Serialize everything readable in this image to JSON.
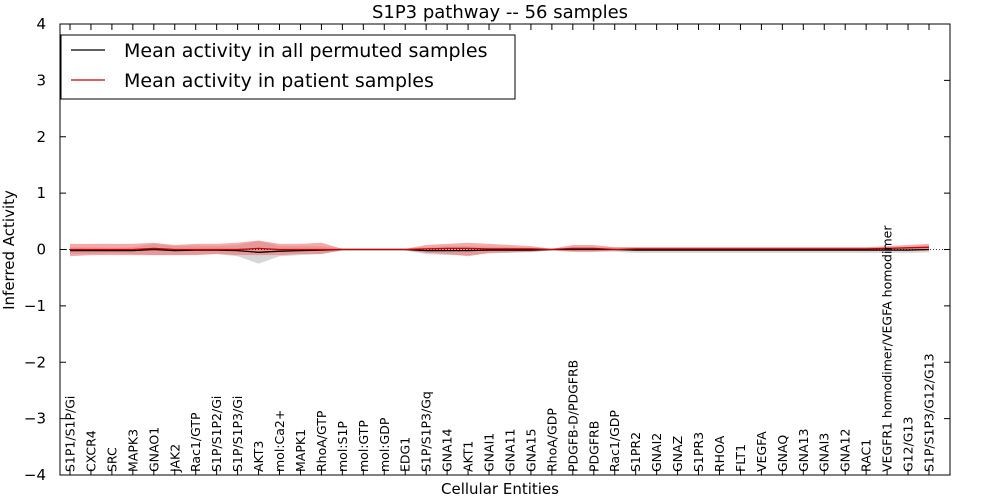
{
  "chart_data": {
    "type": "line",
    "title": "S1P3 pathway -- 56 samples",
    "xlabel": "Cellular Entities",
    "ylabel": "Inferred Activity",
    "ylim": [
      -4,
      4
    ],
    "yticks": [
      -4,
      -3,
      -2,
      -1,
      0,
      1,
      2,
      3,
      4
    ],
    "ytick_labels": [
      "−4",
      "−3",
      "−2",
      "−1",
      "0",
      "1",
      "2",
      "3",
      "4"
    ],
    "legend_position": "upper-left",
    "categories": [
      "S1P1/S1P/Gi",
      "CXCR4",
      "SRC",
      "MAPK3",
      "GNAO1",
      "JAK2",
      "Rac1/GTP",
      "S1P/S1P2/Gi",
      "S1P/S1P3/Gi",
      "AKT3",
      "mol:Ca2+",
      "MAPK1",
      "RhoA/GTP",
      "mol:S1P",
      "mol:GTP",
      "mol:GDP",
      "EDG1",
      "S1P/S1P3/Gq",
      "GNA14",
      "AKT1",
      "GNAI1",
      "GNA11",
      "GNA15",
      "RhoA/GDP",
      "PDGFB-D/PDGFRB",
      "PDGFRB",
      "Rac1/GDP",
      "S1PR2",
      "GNAI2",
      "GNAZ",
      "S1PR3",
      "RHOA",
      "FLT1",
      "VEGFA",
      "GNAQ",
      "GNA13",
      "GNAI3",
      "GNA12",
      "RAC1",
      "VEGFR1 homodimer/VEGFA homodimer",
      "G12/G13",
      "S1P/S1P3/G12/G13"
    ],
    "series": [
      {
        "name": "Mean activity in all permuted samples",
        "color": "#000000",
        "values": [
          -0.02,
          -0.02,
          -0.02,
          -0.02,
          0.0,
          -0.02,
          -0.01,
          -0.01,
          -0.02,
          -0.05,
          -0.03,
          -0.02,
          -0.01,
          0.0,
          0.0,
          0.0,
          0.0,
          -0.02,
          -0.02,
          -0.02,
          -0.01,
          -0.01,
          -0.01,
          0.0,
          0.0,
          0.0,
          0.0,
          -0.01,
          -0.01,
          -0.01,
          -0.01,
          -0.01,
          -0.01,
          -0.01,
          -0.01,
          -0.01,
          -0.01,
          -0.01,
          -0.01,
          -0.01,
          -0.01,
          0.0
        ],
        "band_lower": [
          -0.08,
          -0.08,
          -0.07,
          -0.08,
          -0.1,
          -0.1,
          -0.09,
          -0.08,
          -0.12,
          -0.25,
          -0.12,
          -0.1,
          -0.08,
          -0.02,
          -0.02,
          -0.02,
          -0.02,
          -0.08,
          -0.1,
          -0.1,
          -0.07,
          -0.06,
          -0.05,
          -0.02,
          -0.04,
          -0.04,
          -0.04,
          -0.06,
          -0.06,
          -0.06,
          -0.06,
          -0.06,
          -0.06,
          -0.06,
          -0.06,
          -0.06,
          -0.06,
          -0.06,
          -0.06,
          -0.06,
          -0.06,
          -0.05
        ],
        "band_upper": [
          0.04,
          0.04,
          0.03,
          0.04,
          0.1,
          0.06,
          0.07,
          0.06,
          0.08,
          0.15,
          0.06,
          0.06,
          0.06,
          0.02,
          0.02,
          0.02,
          0.02,
          0.04,
          0.06,
          0.06,
          0.05,
          0.04,
          0.03,
          0.02,
          0.04,
          0.04,
          0.04,
          0.04,
          0.04,
          0.04,
          0.04,
          0.04,
          0.04,
          0.04,
          0.04,
          0.04,
          0.04,
          0.04,
          0.04,
          0.04,
          0.04,
          0.05
        ],
        "band_color": "#bbbbbb"
      },
      {
        "name": "Mean activity in patient samples",
        "color": "#cc0000",
        "values": [
          0.0,
          0.0,
          0.0,
          0.0,
          0.02,
          0.0,
          0.0,
          0.0,
          0.0,
          0.02,
          0.0,
          0.0,
          0.0,
          0.0,
          0.0,
          0.0,
          0.0,
          0.01,
          0.02,
          0.02,
          0.01,
          0.01,
          0.01,
          0.0,
          0.02,
          0.02,
          0.0,
          0.01,
          0.01,
          0.01,
          0.01,
          0.01,
          0.01,
          0.01,
          0.01,
          0.01,
          0.01,
          0.01,
          0.01,
          0.02,
          0.03,
          0.04
        ],
        "band_lower": [
          -0.12,
          -0.1,
          -0.1,
          -0.1,
          -0.1,
          -0.1,
          -0.1,
          -0.08,
          -0.1,
          -0.1,
          -0.1,
          -0.08,
          -0.08,
          -0.01,
          -0.01,
          -0.01,
          -0.01,
          -0.06,
          -0.08,
          -0.12,
          -0.06,
          -0.05,
          -0.04,
          -0.01,
          -0.04,
          -0.04,
          -0.02,
          -0.02,
          -0.02,
          -0.02,
          -0.02,
          -0.02,
          -0.02,
          -0.02,
          -0.02,
          -0.02,
          -0.02,
          -0.02,
          -0.02,
          -0.02,
          -0.02,
          -0.02
        ],
        "band_upper": [
          0.1,
          0.1,
          0.1,
          0.1,
          0.12,
          0.08,
          0.1,
          0.1,
          0.12,
          0.16,
          0.1,
          0.1,
          0.12,
          0.01,
          0.01,
          0.01,
          0.01,
          0.08,
          0.1,
          0.12,
          0.1,
          0.08,
          0.06,
          0.01,
          0.08,
          0.08,
          0.04,
          0.04,
          0.04,
          0.04,
          0.04,
          0.04,
          0.04,
          0.04,
          0.04,
          0.04,
          0.04,
          0.04,
          0.04,
          0.06,
          0.08,
          0.1
        ],
        "band_color": "#ee7070"
      }
    ]
  }
}
